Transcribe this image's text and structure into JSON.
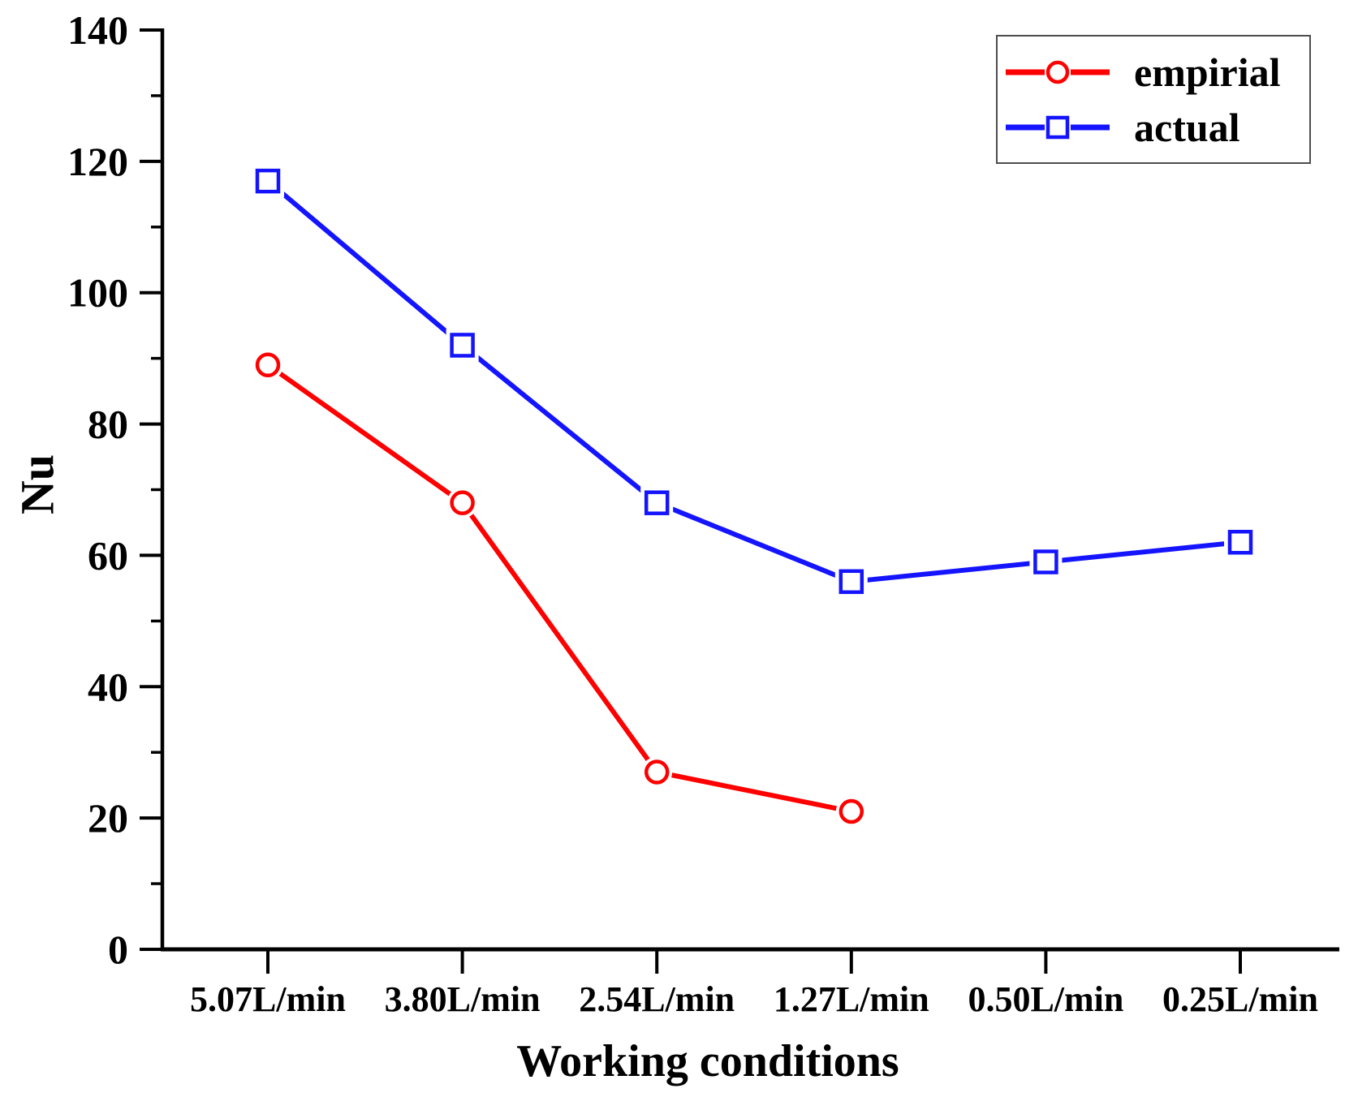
{
  "chart_data": {
    "type": "line",
    "title": "",
    "xlabel": "Working conditions",
    "ylabel": "Nu",
    "categories": [
      "5.07L/min",
      "3.80L/min",
      "2.54L/min",
      "1.27L/min",
      "0.50L/min",
      "0.25L/min"
    ],
    "series": [
      {
        "name": "empirial",
        "color": "#ff0000",
        "marker": "circle",
        "values": [
          89,
          68,
          27,
          21,
          null,
          null
        ]
      },
      {
        "name": "actual",
        "color": "#1414ff",
        "marker": "square",
        "values": [
          117,
          92,
          68,
          56,
          59,
          62
        ]
      }
    ],
    "ylim": [
      0,
      140
    ],
    "yticks": [
      0,
      20,
      40,
      60,
      80,
      100,
      120,
      140
    ],
    "minor_yticks": [
      10,
      30,
      50,
      70,
      90,
      110,
      130
    ],
    "grid": false,
    "legend_position": "top-right",
    "axis_color": "#000000",
    "background_color": "#ffffff"
  }
}
